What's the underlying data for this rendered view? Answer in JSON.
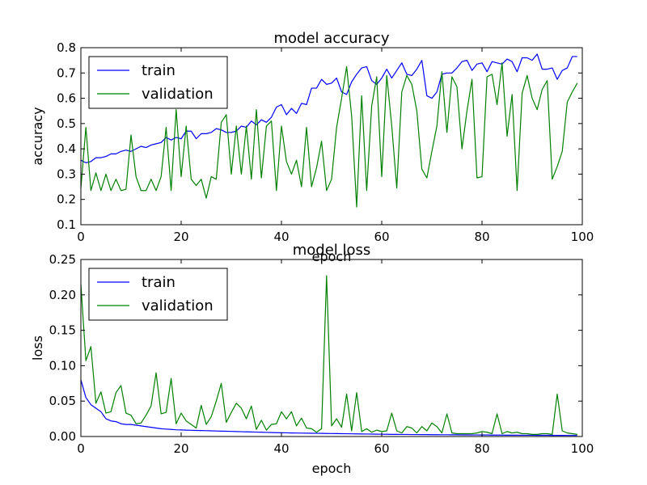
{
  "chart_data": [
    {
      "type": "line",
      "title": "model accuracy",
      "xlabel": "epoch",
      "ylabel": "accuracy",
      "xlim": [
        0,
        100
      ],
      "ylim": [
        0.1,
        0.8
      ],
      "x_ticks": [
        "0",
        "20",
        "40",
        "60",
        "80",
        "100"
      ],
      "y_ticks": [
        "0.1",
        "0.2",
        "0.3",
        "0.4",
        "0.5",
        "0.6",
        "0.7",
        "0.8"
      ],
      "legend_position": "top-left",
      "grid": false,
      "series": [
        {
          "name": "train",
          "color": "#0000ff",
          "values": [
            0.355,
            0.345,
            0.35,
            0.365,
            0.365,
            0.37,
            0.38,
            0.38,
            0.39,
            0.395,
            0.39,
            0.4,
            0.41,
            0.405,
            0.415,
            0.42,
            0.425,
            0.445,
            0.435,
            0.445,
            0.44,
            0.47,
            0.47,
            0.44,
            0.46,
            0.46,
            0.465,
            0.48,
            0.475,
            0.465,
            0.465,
            0.47,
            0.49,
            0.485,
            0.51,
            0.495,
            0.515,
            0.505,
            0.525,
            0.565,
            0.575,
            0.535,
            0.56,
            0.54,
            0.58,
            0.575,
            0.64,
            0.64,
            0.675,
            0.655,
            0.66,
            0.68,
            0.625,
            0.615,
            0.665,
            0.695,
            0.72,
            0.725,
            0.67,
            0.655,
            0.68,
            0.715,
            0.68,
            0.71,
            0.74,
            0.695,
            0.69,
            0.715,
            0.75,
            0.61,
            0.6,
            0.625,
            0.695,
            0.7,
            0.7,
            0.72,
            0.745,
            0.75,
            0.71,
            0.735,
            0.74,
            0.705,
            0.745,
            0.74,
            0.735,
            0.755,
            0.745,
            0.705,
            0.76,
            0.76,
            0.75,
            0.775,
            0.715,
            0.715,
            0.72,
            0.675,
            0.71,
            0.72,
            0.765,
            0.765
          ]
        },
        {
          "name": "validation",
          "color": "#008000",
          "values": [
            0.245,
            0.485,
            0.235,
            0.305,
            0.235,
            0.3,
            0.235,
            0.28,
            0.235,
            0.24,
            0.455,
            0.29,
            0.235,
            0.235,
            0.28,
            0.235,
            0.29,
            0.485,
            0.235,
            0.555,
            0.29,
            0.49,
            0.28,
            0.255,
            0.28,
            0.205,
            0.29,
            0.28,
            0.505,
            0.535,
            0.3,
            0.49,
            0.3,
            0.49,
            0.28,
            0.555,
            0.285,
            0.49,
            0.51,
            0.235,
            0.49,
            0.35,
            0.3,
            0.355,
            0.25,
            0.485,
            0.25,
            0.325,
            0.43,
            0.235,
            0.28,
            0.485,
            0.6,
            0.725,
            0.53,
            0.17,
            0.61,
            0.235,
            0.57,
            0.685,
            0.29,
            0.69,
            0.49,
            0.245,
            0.625,
            0.69,
            0.655,
            0.55,
            0.32,
            0.285,
            0.39,
            0.49,
            0.705,
            0.465,
            0.685,
            0.645,
            0.4,
            0.55,
            0.675,
            0.285,
            0.29,
            0.685,
            0.695,
            0.575,
            0.74,
            0.45,
            0.615,
            0.235,
            0.62,
            0.69,
            0.6,
            0.555,
            0.635,
            0.67,
            0.28,
            0.33,
            0.39,
            0.585,
            0.625,
            0.66
          ]
        }
      ]
    },
    {
      "type": "line",
      "title": "model loss",
      "xlabel": "epoch",
      "ylabel": "loss",
      "xlim": [
        0,
        100
      ],
      "ylim": [
        0,
        0.25
      ],
      "x_ticks": [
        "0",
        "20",
        "40",
        "60",
        "80",
        "100"
      ],
      "y_ticks": [
        "0.00",
        "0.05",
        "0.10",
        "0.15",
        "0.20",
        "0.25"
      ],
      "legend_position": "top-left",
      "grid": false,
      "series": [
        {
          "name": "train",
          "color": "#0000ff",
          "values": [
            0.08,
            0.055,
            0.045,
            0.04,
            0.035,
            0.025,
            0.022,
            0.021,
            0.018,
            0.017,
            0.017,
            0.016,
            0.015,
            0.014,
            0.013,
            0.012,
            0.011,
            0.0105,
            0.01,
            0.0095,
            0.0093,
            0.009,
            0.0088,
            0.0086,
            0.0084,
            0.0082,
            0.008,
            0.0078,
            0.0076,
            0.0074,
            0.0072,
            0.007,
            0.0068,
            0.0066,
            0.0064,
            0.0062,
            0.006,
            0.0058,
            0.0056,
            0.0054,
            0.0053,
            0.0052,
            0.005,
            0.0049,
            0.0048,
            0.0047,
            0.0046,
            0.0045,
            0.0044,
            0.0043,
            0.0042,
            0.0041,
            0.004,
            0.0039,
            0.0038,
            0.0037,
            0.0036,
            0.0035,
            0.0034,
            0.0033,
            0.0032,
            0.0031,
            0.003,
            0.003,
            0.0029,
            0.0029,
            0.0028,
            0.0028,
            0.0027,
            0.0027,
            0.0026,
            0.0026,
            0.0025,
            0.0025,
            0.0024,
            0.0024,
            0.0023,
            0.0023,
            0.0022,
            0.0022,
            0.0021,
            0.0021,
            0.002,
            0.002,
            0.002,
            0.0019,
            0.0019,
            0.0019,
            0.0018,
            0.0018,
            0.0018,
            0.0017,
            0.0017,
            0.0017,
            0.0016,
            0.0016,
            0.0016,
            0.0015,
            0.0015,
            0.0015
          ]
        },
        {
          "name": "validation",
          "color": "#008000",
          "values": [
            0.215,
            0.107,
            0.127,
            0.047,
            0.063,
            0.033,
            0.035,
            0.062,
            0.072,
            0.033,
            0.03,
            0.018,
            0.019,
            0.03,
            0.043,
            0.09,
            0.032,
            0.034,
            0.082,
            0.018,
            0.033,
            0.022,
            0.017,
            0.012,
            0.044,
            0.017,
            0.028,
            0.05,
            0.075,
            0.02,
            0.034,
            0.047,
            0.04,
            0.025,
            0.043,
            0.01,
            0.023,
            0.009,
            0.017,
            0.018,
            0.035,
            0.025,
            0.035,
            0.015,
            0.026,
            0.012,
            0.011,
            0.006,
            0.011,
            0.227,
            0.015,
            0.025,
            0.013,
            0.06,
            0.008,
            0.062,
            0.007,
            0.011,
            0.006,
            0.009,
            0.007,
            0.008,
            0.033,
            0.008,
            0.005,
            0.014,
            0.012,
            0.005,
            0.014,
            0.008,
            0.019,
            0.014,
            0.005,
            0.032,
            0.005,
            0.004,
            0.004,
            0.004,
            0.004,
            0.005,
            0.007,
            0.006,
            0.004,
            0.032,
            0.004,
            0.007,
            0.005,
            0.006,
            0.004,
            0.004,
            0.003,
            0.003,
            0.004,
            0.004,
            0.003,
            0.06,
            0.008,
            0.005,
            0.004,
            0.003
          ]
        }
      ]
    }
  ]
}
